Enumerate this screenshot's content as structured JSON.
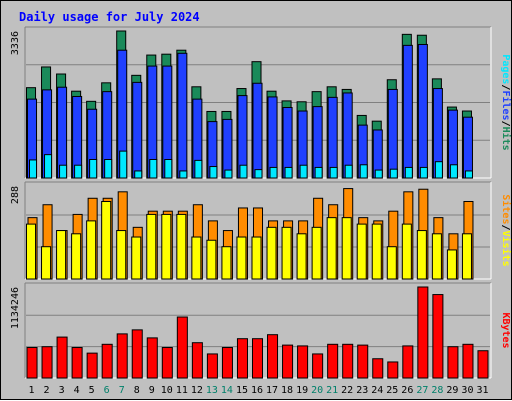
{
  "chart_data": [
    {
      "type": "bar",
      "title": "Daily usage for July 2024",
      "panel": "hits-files-pages",
      "ylabel_parts": [
        "Pages",
        "/",
        "Files",
        "/",
        "Hits"
      ],
      "ymax_label": "3336",
      "ylim": [
        0,
        3336
      ],
      "categories": [
        "1",
        "2",
        "3",
        "4",
        "5",
        "6",
        "7",
        "8",
        "9",
        "10",
        "11",
        "12",
        "13",
        "14",
        "15",
        "16",
        "17",
        "18",
        "19",
        "20",
        "21",
        "22",
        "23",
        "24",
        "25",
        "26",
        "27",
        "28",
        "29",
        "30",
        "31"
      ],
      "series": [
        {
          "name": "Hits",
          "color": "#1a8a5a",
          "values": [
            2050,
            2520,
            2360,
            1970,
            1740,
            2160,
            3336,
            2330,
            2790,
            2810,
            2900,
            2070,
            1510,
            1510,
            2030,
            2640,
            1970,
            1750,
            1730,
            1960,
            2070,
            2010,
            1420,
            1290,
            2230,
            3260,
            3240,
            2250,
            1610,
            1520,
            0
          ]
        },
        {
          "name": "Files",
          "color": "#2040ff",
          "values": [
            1790,
            2000,
            2060,
            1850,
            1560,
            1960,
            2900,
            2170,
            2540,
            2540,
            2830,
            1790,
            1280,
            1330,
            1870,
            2150,
            1840,
            1600,
            1520,
            1620,
            1830,
            1930,
            1200,
            1090,
            2010,
            3010,
            3030,
            2030,
            1540,
            1380,
            0
          ]
        },
        {
          "name": "Pages",
          "color": "#00e8ff",
          "values": [
            410,
            530,
            290,
            290,
            420,
            420,
            610,
            160,
            420,
            420,
            160,
            400,
            260,
            180,
            290,
            190,
            240,
            240,
            290,
            240,
            240,
            290,
            300,
            180,
            200,
            240,
            240,
            370,
            300,
            160,
            0
          ]
        }
      ]
    },
    {
      "type": "bar",
      "panel": "sites-visits",
      "ylabel_parts": [
        "Sites",
        "/",
        "Visits"
      ],
      "ymax_label": "288",
      "ylim": [
        0,
        288
      ],
      "categories": [
        "1",
        "2",
        "3",
        "4",
        "5",
        "6",
        "7",
        "8",
        "9",
        "10",
        "11",
        "12",
        "13",
        "14",
        "15",
        "16",
        "17",
        "18",
        "19",
        "20",
        "21",
        "22",
        "23",
        "24",
        "25",
        "26",
        "27",
        "28",
        "29",
        "30",
        "31"
      ],
      "series": [
        {
          "name": "Visits",
          "color": "#ff8c00",
          "values": [
            190,
            230,
            150,
            200,
            250,
            250,
            270,
            160,
            210,
            210,
            210,
            230,
            180,
            150,
            220,
            220,
            180,
            180,
            180,
            250,
            230,
            280,
            190,
            180,
            210,
            270,
            278,
            190,
            140,
            240,
            0
          ]
        },
        {
          "name": "Sites",
          "color": "#ffff00",
          "values": [
            170,
            100,
            150,
            140,
            180,
            240,
            150,
            130,
            200,
            200,
            200,
            130,
            120,
            100,
            130,
            130,
            160,
            160,
            140,
            160,
            190,
            190,
            170,
            170,
            100,
            170,
            150,
            140,
            90,
            140,
            0
          ]
        }
      ]
    },
    {
      "type": "bar",
      "panel": "kbytes",
      "ylabel_parts": [
        "KBytes"
      ],
      "ymax_label": "1134246",
      "ylim": [
        0,
        1134246
      ],
      "categories": [
        "1",
        "2",
        "3",
        "4",
        "5",
        "6",
        "7",
        "8",
        "9",
        "10",
        "11",
        "12",
        "13",
        "14",
        "15",
        "16",
        "17",
        "18",
        "19",
        "20",
        "21",
        "22",
        "23",
        "24",
        "25",
        "26",
        "27",
        "28",
        "29",
        "30",
        "31"
      ],
      "series": [
        {
          "name": "KBytes",
          "color": "#ff0000",
          "values": [
            380000,
            390000,
            510000,
            380000,
            310000,
            420000,
            550000,
            600000,
            500000,
            380000,
            760000,
            440000,
            300000,
            380000,
            490000,
            490000,
            540000,
            410000,
            400000,
            300000,
            420000,
            420000,
            410000,
            240000,
            200000,
            400000,
            1134246,
            1040000,
            390000,
            420000,
            340000
          ]
        }
      ]
    }
  ],
  "x_axis": {
    "labels": [
      "1",
      "2",
      "3",
      "4",
      "5",
      "6",
      "7",
      "8",
      "9",
      "10",
      "11",
      "12",
      "13",
      "14",
      "15",
      "16",
      "17",
      "18",
      "19",
      "20",
      "21",
      "22",
      "23",
      "24",
      "25",
      "26",
      "27",
      "28",
      "29",
      "30",
      "31"
    ],
    "weekend_days": [
      6,
      7,
      13,
      14,
      20,
      21,
      27,
      28
    ],
    "weekday_color": "#000000",
    "weekend_color": "#00806a"
  },
  "colors": {
    "background": "#c0c0c0",
    "title": "#0000ff",
    "grid": "#808080",
    "hits": "#1a8a5a",
    "files": "#2040ff",
    "pages": "#00e8ff",
    "visits": "#ff8c00",
    "sites": "#ffff00",
    "kbytes": "#ff0000"
  }
}
